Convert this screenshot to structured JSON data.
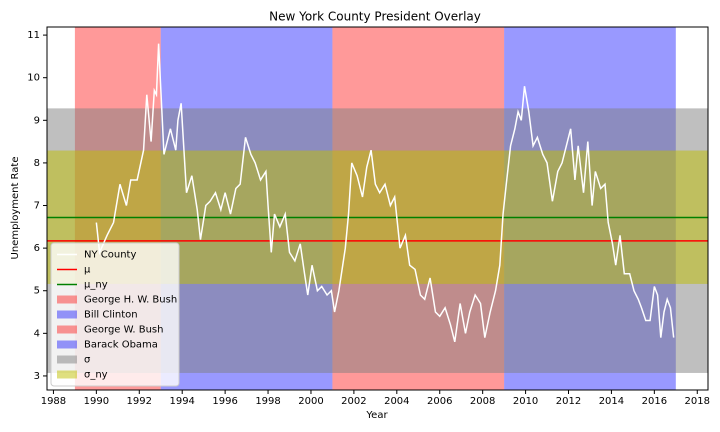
{
  "chart_data": {
    "type": "line",
    "title": "New York County President Overlay",
    "x_label": "Year",
    "y_label": "Unemployment Rate",
    "xlim": [
      1987.7,
      2018.5
    ],
    "ylim": [
      2.67,
      11.19
    ],
    "xticks": [
      1988,
      1990,
      1992,
      1994,
      1996,
      1998,
      2000,
      2002,
      2004,
      2006,
      2008,
      2010,
      2012,
      2014,
      2016,
      2018
    ],
    "yticks": [
      3,
      4,
      5,
      6,
      7,
      8,
      9,
      10,
      11
    ],
    "legend": "lower left",
    "series": [
      {
        "name": "NY County",
        "color": "#ffffff",
        "x": [
          1990.0,
          1990.15,
          1990.5,
          1990.8,
          1991.1,
          1991.4,
          1991.6,
          1991.9,
          1992.2,
          1992.35,
          1992.55,
          1992.7,
          1992.8,
          1992.9,
          1993.15,
          1993.45,
          1993.7,
          1993.8,
          1993.95,
          1994.2,
          1994.45,
          1994.7,
          1994.85,
          1995.1,
          1995.3,
          1995.55,
          1995.8,
          1996.0,
          1996.25,
          1996.5,
          1996.7,
          1996.95,
          1997.2,
          1997.4,
          1997.65,
          1997.9,
          1998.0,
          1998.15,
          1998.3,
          1998.55,
          1998.8,
          1999.0,
          1999.25,
          1999.5,
          1999.7,
          1999.85,
          2000.05,
          2000.3,
          2000.5,
          2000.75,
          2000.95,
          2001.1,
          2001.3,
          2001.6,
          2001.75,
          2001.9,
          2002.15,
          2002.4,
          2002.6,
          2002.8,
          2003.0,
          2003.2,
          2003.45,
          2003.7,
          2003.9,
          2004.15,
          2004.4,
          2004.6,
          2004.85,
          2005.1,
          2005.3,
          2005.55,
          2005.8,
          2006.0,
          2006.25,
          2006.5,
          2006.7,
          2006.95,
          2007.2,
          2007.4,
          2007.65,
          2007.9,
          2008.1,
          2008.35,
          2008.6,
          2008.8,
          2008.95,
          2009.1,
          2009.3,
          2009.5,
          2009.65,
          2009.8,
          2009.95,
          2010.15,
          2010.35,
          2010.55,
          2010.8,
          2011.0,
          2011.25,
          2011.5,
          2011.7,
          2011.95,
          2012.1,
          2012.3,
          2012.45,
          2012.7,
          2012.9,
          2013.1,
          2013.25,
          2013.5,
          2013.7,
          2013.85,
          2014.05,
          2014.2,
          2014.4,
          2014.6,
          2014.85,
          2015.05,
          2015.25,
          2015.4,
          2015.6,
          2015.8,
          2016.0,
          2016.15,
          2016.3,
          2016.45,
          2016.6,
          2016.75,
          2016.9
        ],
        "values": [
          6.6,
          5.9,
          6.3,
          6.6,
          7.5,
          7.0,
          7.6,
          7.6,
          8.3,
          9.6,
          8.5,
          9.7,
          9.6,
          10.8,
          8.2,
          8.8,
          8.3,
          9.0,
          9.4,
          7.3,
          7.7,
          6.9,
          6.2,
          7.0,
          7.1,
          7.3,
          6.9,
          7.3,
          6.8,
          7.4,
          7.5,
          8.6,
          8.2,
          8.0,
          7.6,
          7.8,
          7.0,
          5.9,
          6.8,
          6.5,
          6.8,
          5.9,
          5.7,
          6.1,
          5.4,
          4.9,
          5.6,
          5.0,
          5.1,
          4.9,
          5.0,
          4.5,
          5.0,
          6.0,
          6.8,
          8.0,
          7.7,
          7.2,
          7.9,
          8.3,
          7.5,
          7.3,
          7.5,
          7.0,
          7.2,
          6.0,
          6.3,
          5.6,
          5.5,
          4.9,
          4.8,
          5.3,
          4.5,
          4.4,
          4.6,
          4.2,
          3.8,
          4.7,
          4.0,
          4.5,
          4.9,
          4.7,
          3.9,
          4.5,
          5.0,
          5.6,
          6.8,
          7.5,
          8.4,
          8.8,
          9.2,
          9.0,
          9.8,
          9.2,
          8.4,
          8.6,
          8.2,
          8.0,
          7.1,
          7.8,
          8.0,
          8.5,
          8.8,
          7.6,
          8.4,
          7.3,
          8.5,
          7.0,
          7.8,
          7.4,
          7.5,
          6.6,
          6.1,
          5.6,
          6.3,
          5.4,
          5.4,
          5.0,
          4.8,
          4.6,
          4.3,
          4.3,
          5.1,
          4.9,
          3.9,
          4.5,
          4.8,
          4.6,
          3.9
        ]
      }
    ],
    "hlines": [
      {
        "name": "μ",
        "color": "#ff0000",
        "value": 6.17
      },
      {
        "name": "μ_ny",
        "color": "#008000",
        "value": 6.72
      }
    ],
    "vspans": [
      {
        "name": "George H. W. Bush",
        "color": "#ff0000",
        "opacity": 0.4,
        "start": 1989,
        "end": 1993
      },
      {
        "name": "Bill Clinton",
        "color": "#0000ff",
        "opacity": 0.4,
        "start": 1993,
        "end": 2001
      },
      {
        "name": "George W. Bush",
        "color": "#ff0000",
        "opacity": 0.4,
        "start": 2001,
        "end": 2009
      },
      {
        "name": "Barack Obama",
        "color": "#0000ff",
        "opacity": 0.4,
        "start": 2009,
        "end": 2017
      }
    ],
    "hbands": [
      {
        "name": "σ",
        "color": "#808080",
        "opacity": 0.5,
        "low": 3.07,
        "high": 9.28
      },
      {
        "name": "σ_ny",
        "color": "#bfbf00",
        "opacity": 0.5,
        "low": 5.16,
        "high": 8.29
      }
    ]
  }
}
